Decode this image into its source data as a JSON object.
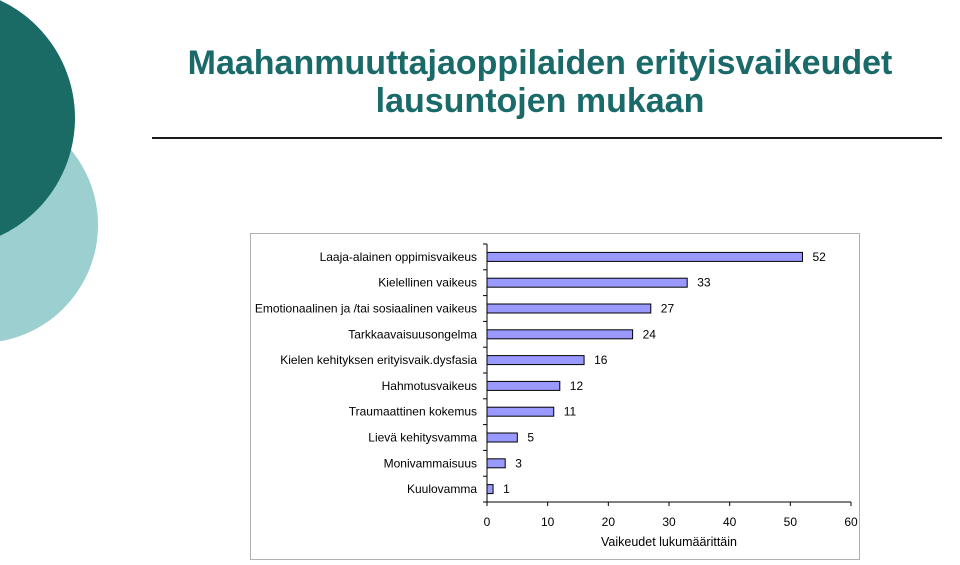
{
  "slide": {
    "title": "Maahanmuuttajaoppilaiden erityisvaikeudet lausuntojen mukaan"
  },
  "colors": {
    "title": "#1a6a6a",
    "deco_dark": "#1a6a66",
    "deco_light": "#9ccfcf",
    "bar_fill": "#9999ff",
    "bar_stroke": "#000000"
  },
  "chart_data": {
    "type": "bar",
    "orientation": "horizontal",
    "categories": [
      "Laaja-alainen oppimisvaikeus",
      "Kielellinen vaikeus",
      "Emotionaalinen ja /tai sosiaalinen vaikeus",
      "Tarkkaavaisuusongelma",
      "Kielen kehityksen erityisvaik.dysfasia",
      "Hahmotusvaikeus",
      "Traumaattinen kokemus",
      "Lievä kehitysvamma",
      "Monivammaisuus",
      "Kuulovamma"
    ],
    "values": [
      52,
      33,
      27,
      24,
      16,
      12,
      11,
      5,
      3,
      1
    ],
    "xlabel": "Vaikeudet lukumäärittäin",
    "ylabel": "",
    "xlim": [
      0,
      60
    ],
    "xticks": [
      0,
      10,
      20,
      30,
      40,
      50,
      60
    ],
    "grid": false,
    "data_labels": true
  }
}
